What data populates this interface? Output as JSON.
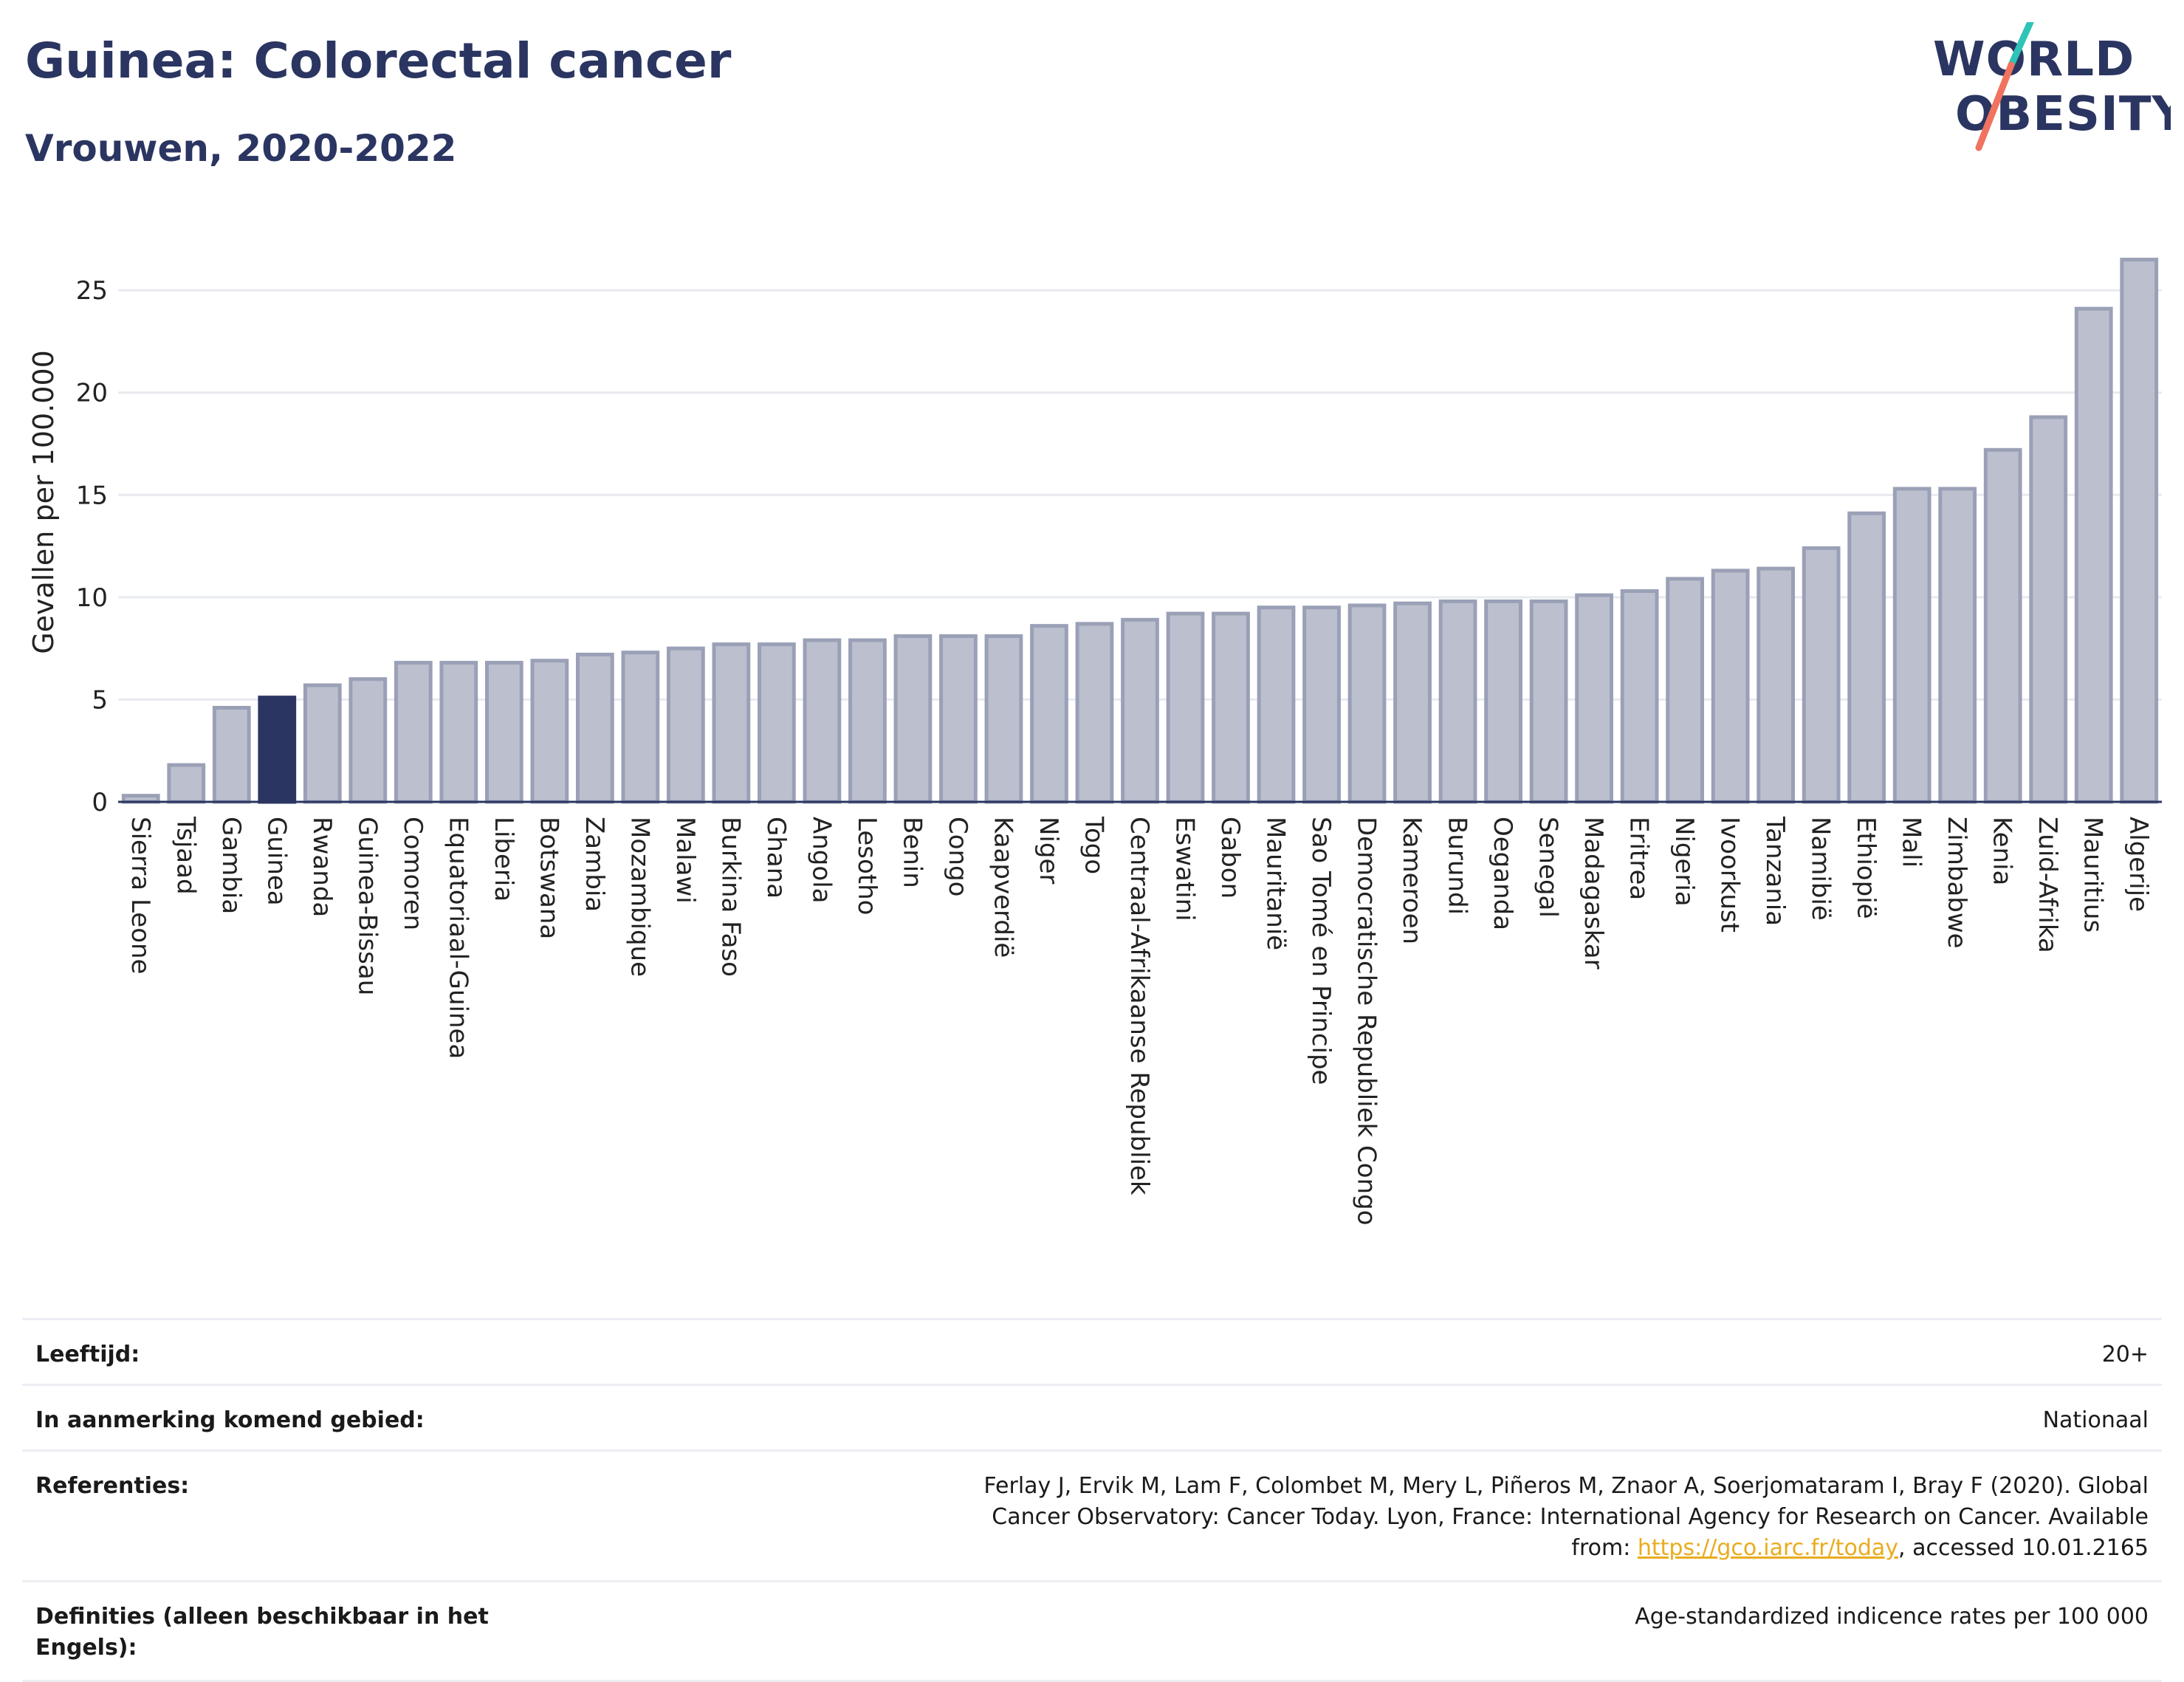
{
  "header": {
    "title": "Guinea: Colorectal cancer",
    "subtitle": "Vrouwen, 2020-2022",
    "logo_text": "WORLD OBESITY"
  },
  "colors": {
    "bar": "#bcc0ce",
    "bar_edge": "#9aa0b6",
    "highlight": "#2b3561",
    "grid": "#e8eaf0",
    "baseline": "#2b3561",
    "logo_blue": "#2b3561",
    "logo_teal": "#2ec4b6",
    "logo_coral": "#f0735f"
  },
  "chart_data": {
    "type": "bar",
    "ylabel": "Gevallen per 100.000",
    "xlabel": "",
    "ylim": [
      0,
      28
    ],
    "yticks": [
      0,
      5,
      10,
      15,
      20,
      25
    ],
    "grid": true,
    "highlight": "Guinea",
    "categories": [
      "Sierra Leone",
      "Tsjaad",
      "Gambia",
      "Guinea",
      "Rwanda",
      "Guinea-Bissau",
      "Comoren",
      "Equatoriaal-Guinea",
      "Liberia",
      "Botswana",
      "Zambia",
      "Mozambique",
      "Malawi",
      "Burkina Faso",
      "Ghana",
      "Angola",
      "Lesotho",
      "Benin",
      "Congo",
      "Kaapverdië",
      "Niger",
      "Togo",
      "Centraal-Afrikaanse Republiek",
      "Eswatini",
      "Gabon",
      "Mauritanië",
      "Sao Tomé en Principe",
      "Democratische Republiek Congo",
      "Kameroen",
      "Burundi",
      "Oeganda",
      "Senegal",
      "Madagaskar",
      "Eritrea",
      "Nigeria",
      "Ivoorkust",
      "Tanzania",
      "Namibië",
      "Ethiopië",
      "Mali",
      "Zimbabwe",
      "Kenia",
      "Zuid-Afrika",
      "Mauritius",
      "Algerije"
    ],
    "values": [
      0.3,
      1.8,
      4.6,
      5.1,
      5.7,
      6.0,
      6.8,
      6.8,
      6.8,
      6.9,
      7.2,
      7.3,
      7.5,
      7.7,
      7.7,
      7.9,
      7.9,
      8.1,
      8.1,
      8.1,
      8.6,
      8.7,
      8.9,
      9.2,
      9.2,
      9.5,
      9.5,
      9.6,
      9.7,
      9.8,
      9.8,
      9.8,
      10.1,
      10.3,
      10.9,
      11.3,
      11.4,
      12.4,
      14.1,
      15.3,
      15.3,
      17.2,
      18.8,
      24.1,
      26.5
    ]
  },
  "info": [
    {
      "key": "Leeftijd:",
      "value": "20+"
    },
    {
      "key": "In aanmerking komend gebied:",
      "value": "Nationaal"
    },
    {
      "key": "Referenties:",
      "value_pre": "Ferlay J, Ervik M, Lam F, Colombet M, Mery L, Piñeros M, Znaor A, Soerjomataram I, Bray F (2020). Global Cancer Observatory: Cancer Today. Lyon, France: International Agency for Research on Cancer. Available from: ",
      "link": "https://gco.iarc.fr/today",
      "value_post": ", accessed 10.01.2165"
    },
    {
      "key": "Definities (alleen beschikbaar in het Engels):",
      "value": "Age-standardized indicence rates per 100 000"
    }
  ]
}
